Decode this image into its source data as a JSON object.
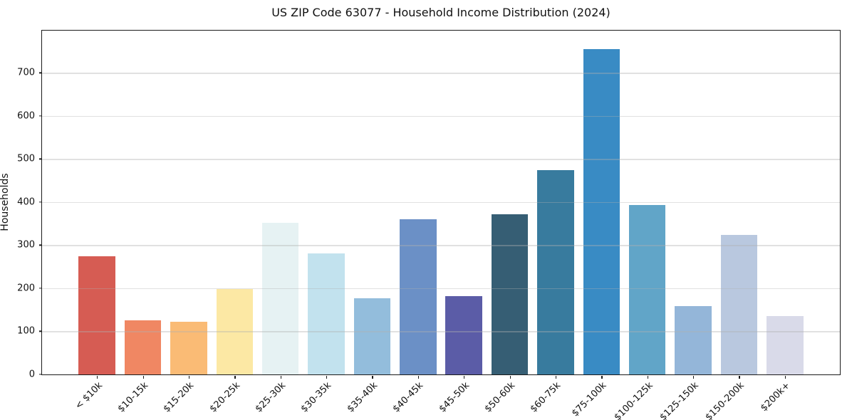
{
  "figure": {
    "title": "US ZIP Code 63077 - Household Income Distribution (2024)"
  },
  "chart_data": {
    "type": "bar",
    "title": "US ZIP Code 63077 - Household Income Distribution (2024)",
    "xlabel": "",
    "ylabel": "Households",
    "categories": [
      "< $10k",
      "$10-15k",
      "$15-20k",
      "$20-25k",
      "$25-30k",
      "$30-35k",
      "$35-40k",
      "$40-45k",
      "$45-50k",
      "$50-60k",
      "$60-75k",
      "$75-100k",
      "$100-125k",
      "$125-150k",
      "$150-200k",
      "$200k+"
    ],
    "values": [
      275,
      126,
      122,
      199,
      352,
      281,
      177,
      360,
      181,
      371,
      475,
      755,
      393,
      158,
      324,
      135
    ],
    "bar_colors": [
      "#d65c53",
      "#f08763",
      "#fabb75",
      "#fce8a4",
      "#e6f2f3",
      "#c2e2ee",
      "#93bddc",
      "#6b90c6",
      "#5b5ca7",
      "#365e74",
      "#387b9e",
      "#398bc4",
      "#61a5c8",
      "#94b6d9",
      "#b9c8df",
      "#d9dae9"
    ],
    "ylim": [
      0,
      798
    ],
    "yticks": [
      0,
      100,
      200,
      300,
      400,
      500,
      600,
      700
    ],
    "grid": "horizontal",
    "legend": "none",
    "bar_width_fraction": 0.8,
    "spine_color": "#1a1a1a",
    "grid_color": "rgba(176,176,176,0.38)",
    "background_color": "#ffffff"
  }
}
